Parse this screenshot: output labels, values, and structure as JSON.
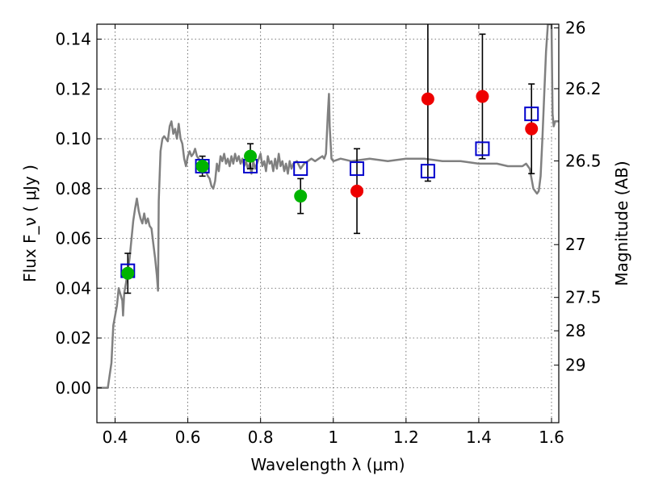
{
  "chart_data": {
    "type": "scatter",
    "title": "",
    "xlabel": "Wavelength  λ (μm)",
    "ylabel": "Flux  F_ν  ( μJy )",
    "y2label": "Magnitude (AB)",
    "xlim": [
      0.35,
      1.62
    ],
    "ylim": [
      -0.014,
      0.146
    ],
    "grid": true,
    "legend": "none",
    "xticks": [
      0.4,
      0.6,
      0.8,
      1.0,
      1.2,
      1.4,
      1.6
    ],
    "xtick_labels": [
      "0.4",
      "0.6",
      "0.8",
      "1",
      "1.2",
      "1.4",
      "1.6"
    ],
    "yticks": [
      0.0,
      0.02,
      0.04,
      0.06,
      0.08,
      0.1,
      0.12,
      0.14
    ],
    "ytick_labels": [
      "0.00",
      "0.02",
      "0.04",
      "0.06",
      "0.08",
      "0.10",
      "0.12",
      "0.14"
    ],
    "y2ticks": [
      {
        "label": "26",
        "flux": 0.1445
      },
      {
        "label": "26.2",
        "flux": 0.1201
      },
      {
        "label": "26.5",
        "flux": 0.0911
      },
      {
        "label": "27",
        "flux": 0.0575
      },
      {
        "label": "27.5",
        "flux": 0.0363
      },
      {
        "label": "28",
        "flux": 0.0229
      },
      {
        "label": "29",
        "flux": 0.0091
      }
    ],
    "colors": {
      "model": "#808080",
      "green": "#00b400",
      "red": "#ee0000",
      "square": "#0000cc",
      "grid": "#555555"
    },
    "series": [
      {
        "marker": "line",
        "color": "#808080",
        "points": [
          [
            0.35,
            0.0
          ],
          [
            0.38,
            0.0
          ],
          [
            0.39,
            0.01
          ],
          [
            0.395,
            0.025
          ],
          [
            0.405,
            0.033
          ],
          [
            0.41,
            0.04
          ],
          [
            0.42,
            0.035
          ],
          [
            0.422,
            0.029
          ],
          [
            0.425,
            0.038
          ],
          [
            0.43,
            0.042
          ],
          [
            0.44,
            0.052
          ],
          [
            0.45,
            0.067
          ],
          [
            0.455,
            0.072
          ],
          [
            0.46,
            0.076
          ],
          [
            0.465,
            0.071
          ],
          [
            0.47,
            0.068
          ],
          [
            0.475,
            0.066
          ],
          [
            0.48,
            0.07
          ],
          [
            0.485,
            0.066
          ],
          [
            0.49,
            0.068
          ],
          [
            0.495,
            0.065
          ],
          [
            0.5,
            0.064
          ],
          [
            0.505,
            0.058
          ],
          [
            0.51,
            0.052
          ],
          [
            0.515,
            0.045
          ],
          [
            0.518,
            0.039
          ],
          [
            0.52,
            0.075
          ],
          [
            0.525,
            0.095
          ],
          [
            0.53,
            0.1
          ],
          [
            0.535,
            0.101
          ],
          [
            0.54,
            0.1
          ],
          [
            0.545,
            0.099
          ],
          [
            0.55,
            0.105
          ],
          [
            0.555,
            0.107
          ],
          [
            0.56,
            0.102
          ],
          [
            0.565,
            0.104
          ],
          [
            0.57,
            0.1
          ],
          [
            0.575,
            0.106
          ],
          [
            0.58,
            0.1
          ],
          [
            0.585,
            0.098
          ],
          [
            0.59,
            0.092
          ],
          [
            0.595,
            0.089
          ],
          [
            0.6,
            0.093
          ],
          [
            0.605,
            0.095
          ],
          [
            0.61,
            0.093
          ],
          [
            0.615,
            0.094
          ],
          [
            0.62,
            0.096
          ],
          [
            0.625,
            0.093
          ],
          [
            0.63,
            0.092
          ],
          [
            0.635,
            0.091
          ],
          [
            0.64,
            0.088
          ],
          [
            0.645,
            0.09
          ],
          [
            0.65,
            0.087
          ],
          [
            0.655,
            0.085
          ],
          [
            0.66,
            0.084
          ],
          [
            0.665,
            0.081
          ],
          [
            0.67,
            0.08
          ],
          [
            0.675,
            0.083
          ],
          [
            0.68,
            0.09
          ],
          [
            0.685,
            0.087
          ],
          [
            0.69,
            0.093
          ],
          [
            0.695,
            0.091
          ],
          [
            0.7,
            0.094
          ],
          [
            0.705,
            0.09
          ],
          [
            0.71,
            0.092
          ],
          [
            0.715,
            0.089
          ],
          [
            0.72,
            0.093
          ],
          [
            0.725,
            0.09
          ],
          [
            0.73,
            0.094
          ],
          [
            0.735,
            0.091
          ],
          [
            0.74,
            0.093
          ],
          [
            0.745,
            0.09
          ],
          [
            0.75,
            0.092
          ],
          [
            0.755,
            0.089
          ],
          [
            0.76,
            0.091
          ],
          [
            0.765,
            0.088
          ],
          [
            0.77,
            0.09
          ],
          [
            0.775,
            0.086
          ],
          [
            0.78,
            0.091
          ],
          [
            0.785,
            0.088
          ],
          [
            0.79,
            0.09
          ],
          [
            0.8,
            0.094
          ],
          [
            0.805,
            0.089
          ],
          [
            0.81,
            0.091
          ],
          [
            0.815,
            0.087
          ],
          [
            0.82,
            0.093
          ],
          [
            0.825,
            0.09
          ],
          [
            0.83,
            0.091
          ],
          [
            0.835,
            0.087
          ],
          [
            0.84,
            0.092
          ],
          [
            0.845,
            0.088
          ],
          [
            0.85,
            0.094
          ],
          [
            0.855,
            0.089
          ],
          [
            0.86,
            0.091
          ],
          [
            0.865,
            0.087
          ],
          [
            0.87,
            0.09
          ],
          [
            0.875,
            0.086
          ],
          [
            0.88,
            0.091
          ],
          [
            0.885,
            0.088
          ],
          [
            0.89,
            0.09
          ],
          [
            0.9,
            0.091
          ],
          [
            0.91,
            0.088
          ],
          [
            0.92,
            0.09
          ],
          [
            0.93,
            0.091
          ],
          [
            0.94,
            0.092
          ],
          [
            0.95,
            0.091
          ],
          [
            0.96,
            0.092
          ],
          [
            0.97,
            0.093
          ],
          [
            0.975,
            0.092
          ],
          [
            0.98,
            0.094
          ],
          [
            0.985,
            0.11
          ],
          [
            0.988,
            0.118
          ],
          [
            0.99,
            0.105
          ],
          [
            0.995,
            0.092
          ],
          [
            1.0,
            0.091
          ],
          [
            1.02,
            0.092
          ],
          [
            1.05,
            0.091
          ],
          [
            1.1,
            0.092
          ],
          [
            1.15,
            0.091
          ],
          [
            1.2,
            0.092
          ],
          [
            1.25,
            0.092
          ],
          [
            1.3,
            0.091
          ],
          [
            1.35,
            0.091
          ],
          [
            1.4,
            0.09
          ],
          [
            1.45,
            0.09
          ],
          [
            1.48,
            0.089
          ],
          [
            1.5,
            0.089
          ],
          [
            1.52,
            0.089
          ],
          [
            1.53,
            0.09
          ],
          [
            1.54,
            0.088
          ],
          [
            1.55,
            0.08
          ],
          [
            1.555,
            0.079
          ],
          [
            1.56,
            0.078
          ],
          [
            1.565,
            0.079
          ],
          [
            1.57,
            0.085
          ],
          [
            1.575,
            0.1
          ],
          [
            1.58,
            0.118
          ],
          [
            1.585,
            0.135
          ],
          [
            1.59,
            0.146
          ],
          [
            1.6,
            0.146
          ],
          [
            1.603,
            0.11
          ],
          [
            1.606,
            0.105
          ],
          [
            1.61,
            0.107
          ],
          [
            1.62,
            0.107
          ]
        ]
      },
      {
        "marker": "circle",
        "color": "#00b400",
        "points": [
          {
            "x": 0.435,
            "y": 0.046,
            "yerr": 0.008
          },
          {
            "x": 0.64,
            "y": 0.089,
            "yerr": 0.004
          },
          {
            "x": 0.772,
            "y": 0.093,
            "yerr": 0.005
          },
          {
            "x": 0.91,
            "y": 0.077,
            "yerr": 0.007
          }
        ]
      },
      {
        "marker": "circle",
        "color": "#ee0000",
        "points": [
          {
            "x": 1.065,
            "y": 0.079,
            "yerr": 0.017
          },
          {
            "x": 1.26,
            "y": 0.116,
            "yerr": 0.033
          },
          {
            "x": 1.41,
            "y": 0.117,
            "yerr": 0.025
          },
          {
            "x": 1.545,
            "y": 0.104,
            "yerr": 0.018
          }
        ]
      },
      {
        "marker": "square",
        "color": "#0000cc",
        "points": [
          {
            "x": 0.435,
            "y": 0.047
          },
          {
            "x": 0.64,
            "y": 0.089
          },
          {
            "x": 0.772,
            "y": 0.089
          },
          {
            "x": 0.91,
            "y": 0.088
          },
          {
            "x": 1.065,
            "y": 0.088
          },
          {
            "x": 1.26,
            "y": 0.087
          },
          {
            "x": 1.41,
            "y": 0.096
          },
          {
            "x": 1.545,
            "y": 0.11
          }
        ]
      }
    ]
  }
}
